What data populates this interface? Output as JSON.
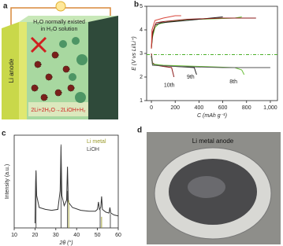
{
  "chart_data": [
    {
      "type": "line",
      "panel_label": "b",
      "xlabel": "C (mAh g⁻¹)",
      "ylabel": "E (V vs Li/Li⁺)",
      "xlim": [
        -40,
        1060
      ],
      "ylim": [
        1,
        5
      ],
      "xticks": [
        0,
        200,
        400,
        600,
        800,
        {
          "value": 1000,
          "label": "1,000"
        }
      ],
      "yticks": [
        1,
        2,
        3,
        4,
        5
      ],
      "hlines": [
        {
          "value": 2.95,
          "color": "#4caf2a"
        }
      ],
      "annotations": [
        "10th",
        "9th",
        "8th"
      ],
      "series": [
        {
          "color": "#6abf3a",
          "x": [
            0,
            10,
            30,
            60,
            150,
            400,
            700,
            760
          ],
          "values": [
            3.2,
            3.7,
            4.1,
            4.25,
            4.35,
            4.45,
            4.5,
            4.55
          ]
        },
        {
          "color": "#222222",
          "x": [
            0,
            10,
            30,
            80,
            300,
            500,
            600
          ],
          "values": [
            3.2,
            3.8,
            4.2,
            4.3,
            4.4,
            4.5,
            4.55
          ]
        },
        {
          "color": "#8b1a1a",
          "x": [
            0,
            10,
            40,
            100,
            300,
            600,
            880
          ],
          "values": [
            3.2,
            3.9,
            4.3,
            4.35,
            4.45,
            4.5,
            4.5
          ]
        },
        {
          "color": "#d9453a",
          "x": [
            0,
            5,
            30,
            100,
            200,
            250
          ],
          "values": [
            3.2,
            4.0,
            4.4,
            4.5,
            4.6,
            4.6
          ]
        },
        {
          "color": "#8b1a1a",
          "x": [
            0,
            10,
            40,
            100,
            170,
            190
          ],
          "values": [
            3.0,
            2.6,
            2.5,
            2.45,
            2.4,
            2.0
          ]
        },
        {
          "color": "#222222",
          "x": [
            0,
            10,
            50,
            200,
            360,
            380
          ],
          "values": [
            2.9,
            2.55,
            2.5,
            2.45,
            2.4,
            2.1
          ]
        },
        {
          "color": "#6abf3a",
          "x": [
            0,
            10,
            100,
            400,
            700,
            760,
            780
          ],
          "values": [
            2.9,
            2.55,
            2.5,
            2.45,
            2.4,
            2.3,
            2.1
          ]
        },
        {
          "color": "#555555",
          "x": [
            0,
            10,
            200,
            600,
            1000
          ],
          "values": [
            2.9,
            2.5,
            2.45,
            2.4,
            2.4
          ]
        }
      ]
    },
    {
      "type": "line",
      "panel_label": "c",
      "xlabel": "2θ (°)",
      "ylabel": "Intensity (a.u.)",
      "xlim": [
        10,
        60
      ],
      "ylim": [
        0,
        100
      ],
      "xticks": [
        10,
        20,
        30,
        40,
        50,
        60
      ],
      "series": [
        {
          "style": "line",
          "color": "#333333",
          "x": [
            20,
            20.3,
            20.5,
            20.8,
            22,
            25,
            28,
            31,
            32.1,
            32.5,
            32.9,
            34,
            35.2,
            35.6,
            36,
            38,
            42,
            46,
            49,
            50,
            50.5,
            51,
            51.6,
            52,
            52.4,
            54,
            55.6,
            56,
            56.4,
            58,
            60
          ],
          "values": [
            5,
            50,
            62,
            35,
            22,
            20,
            19,
            20,
            40,
            88,
            35,
            24,
            30,
            66,
            28,
            22,
            19,
            18,
            18,
            20,
            28,
            20,
            22,
            34,
            20,
            17,
            16,
            22,
            16,
            14,
            13
          ]
        },
        {
          "style": "sticks",
          "name": "Li metal",
          "color": "#9a9a2a",
          "x": [
            36.2,
            52.0
          ],
          "values": [
            30,
            12
          ]
        },
        {
          "style": "sticks",
          "name": "LiOH",
          "color": "#444444",
          "x": [
            20.5,
            32.5,
            35.6,
            51.3,
            56.2
          ],
          "values": [
            60,
            90,
            40,
            20,
            15
          ]
        }
      ]
    }
  ],
  "panel_a": {
    "label": "a",
    "water_text": [
      "H₂O normally existed",
      "in H₂O solution"
    ],
    "anode": "Li anode",
    "reaction": "2Li+2H₂O→2LiOH+H₂"
  },
  "panel_d": {
    "label": "d",
    "caption": "Li metal anode"
  }
}
